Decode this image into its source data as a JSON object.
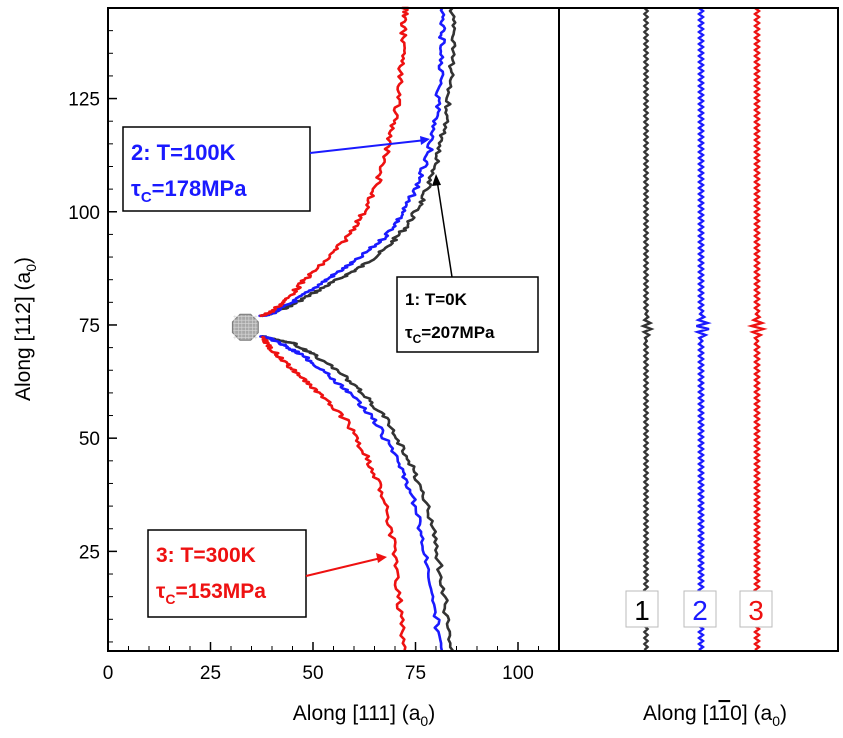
{
  "chart_data": [
    {
      "type": "line",
      "xlabel": "Along [111] (a",
      "xlabel_sub": "0",
      "xlabel_close": ")",
      "ylabel": "Along [112] (a",
      "ylabel_sub": "0",
      "ylabel_close": ")",
      "xlim": [
        0,
        110
      ],
      "ylim": [
        3,
        145
      ],
      "x_ticks": [
        "0",
        "25",
        "50",
        "75",
        "100"
      ],
      "y_ticks": [
        "25",
        "50",
        "75",
        "100",
        "125"
      ],
      "obstacle": {
        "x": 33.5,
        "y": 74.5,
        "color": "#9a9a9a"
      },
      "series": [
        {
          "id": "1",
          "color": "#333333",
          "x": [
            37.5,
            40,
            45,
            50,
            56,
            62,
            68,
            73,
            77,
            80,
            82,
            83.5,
            84,
            84,
            83.5,
            82,
            80,
            77,
            73,
            68,
            62,
            56,
            50,
            45,
            40,
            37.5
          ],
          "y": [
            77,
            77.5,
            79.5,
            82,
            85,
            88,
            92,
            97,
            103,
            110,
            118,
            127,
            136,
            145,
            3,
            15,
            27,
            38,
            46,
            54,
            60,
            65,
            68.5,
            71,
            72,
            72.5
          ]
        },
        {
          "id": "2",
          "color": "#1a1aff",
          "x": [
            37.5,
            40,
            45,
            50,
            55,
            61,
            67,
            71.5,
            75,
            78,
            80,
            81,
            81.5,
            81.5,
            81,
            79.5,
            77,
            74,
            70,
            65,
            59,
            53,
            48,
            43,
            39.5,
            37.5
          ],
          "y": [
            77,
            77.5,
            80,
            83,
            86,
            89.5,
            94,
            99,
            105,
            112,
            120,
            129,
            138,
            145,
            3,
            15,
            27,
            38,
            46,
            54,
            60,
            64.5,
            68,
            70.5,
            72,
            72.5
          ]
        },
        {
          "id": "3",
          "color": "#ee1111",
          "x": [
            37.5,
            40,
            44,
            48,
            53,
            58,
            62.5,
            66,
            68.5,
            70.5,
            71.5,
            72,
            72.5,
            72.5,
            72,
            71,
            69.5,
            67,
            63,
            58,
            52,
            47,
            43,
            40,
            38.5,
            37.5
          ],
          "y": [
            77,
            78,
            81,
            85,
            89,
            94,
            100,
            107,
            115,
            123,
            131,
            139,
            145,
            145,
            3,
            15,
            27,
            38,
            46,
            54,
            59.5,
            63.5,
            67,
            69.5,
            71,
            72.5
          ]
        }
      ]
    },
    {
      "type": "line",
      "xlabel": "Along [1",
      "xlabel_bar": "1",
      "xlabel_rest": "0] (a",
      "xlabel_sub": "0",
      "xlabel_close": ")",
      "ylim": [
        3,
        145
      ],
      "legend_labels": [
        "1",
        "2",
        "3"
      ],
      "series": [
        {
          "id": "1",
          "color": "#333333",
          "offset": 0,
          "wiggle_amp": 0.8,
          "kink": [
            6,
            3
          ]
        },
        {
          "id": "2",
          "color": "#1a1aff",
          "offset": 0,
          "wiggle_amp": 1.0,
          "kink": [
            9,
            5
          ]
        },
        {
          "id": "3",
          "color": "#ee1111",
          "offset": 0,
          "wiggle_amp": 1.0,
          "kink": [
            7,
            6
          ]
        }
      ]
    }
  ],
  "annotations": [
    {
      "id": "1",
      "line1": "1: T=0K",
      "tau_sym": "τ",
      "tau_sub": "C",
      "tau_val": "=207MPa",
      "color": "#000000"
    },
    {
      "id": "2",
      "line1": "2: T=100K",
      "tau_sym": "τ",
      "tau_sub": "C",
      "tau_val": "=178MPa",
      "color": "#1a1aff"
    },
    {
      "id": "3",
      "line1": "3: T=300K",
      "tau_sym": "τ",
      "tau_sub": "C",
      "tau_val": "=153MPa",
      "color": "#ee1111"
    }
  ]
}
